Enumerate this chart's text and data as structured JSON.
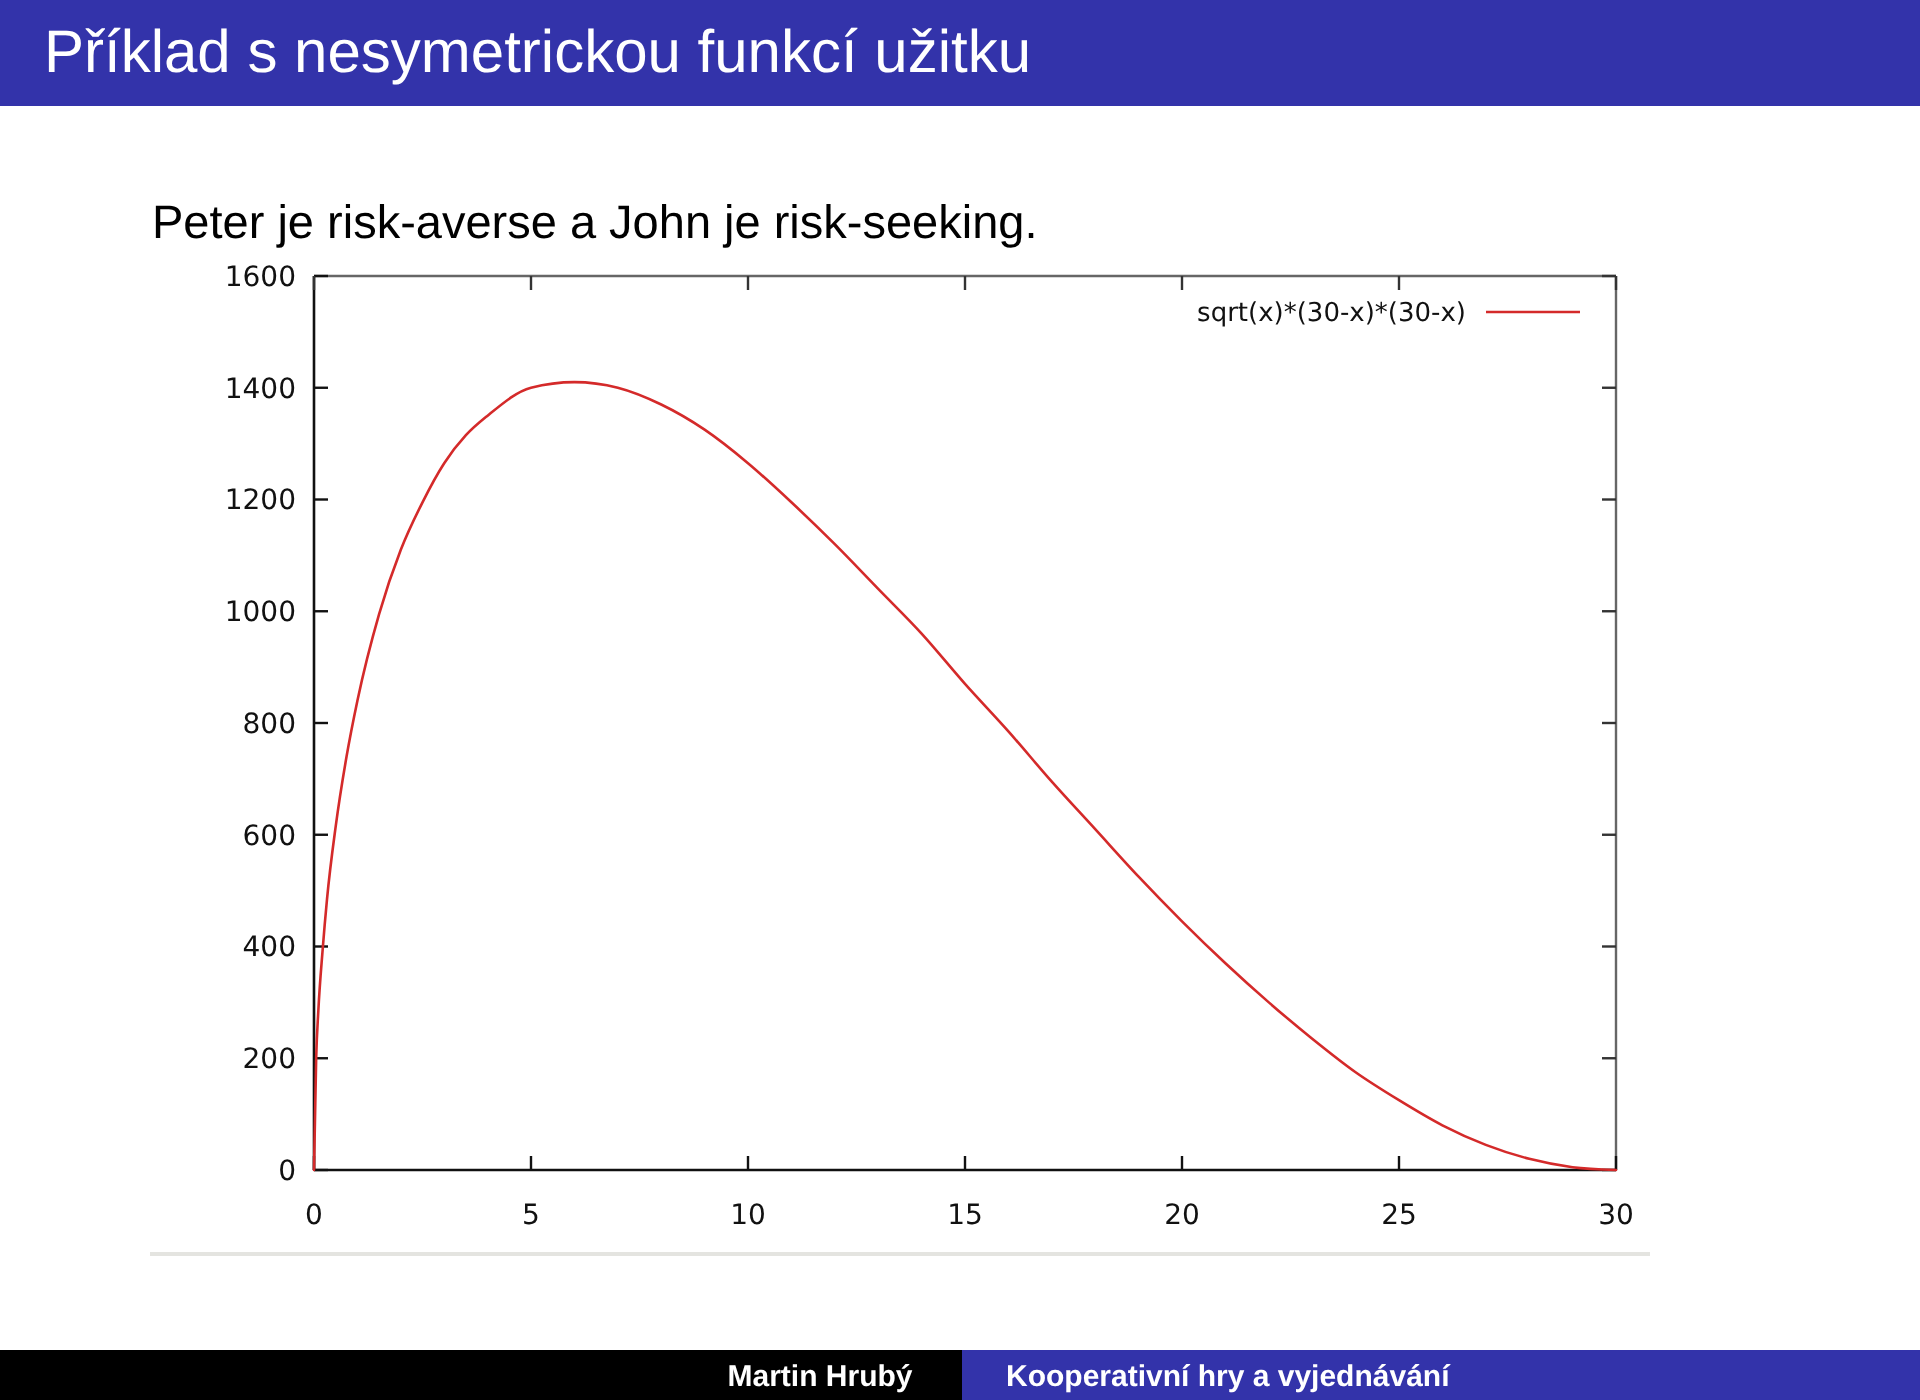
{
  "chart_data": {
    "type": "line",
    "title": "Příklad s nesymetrickou funkcí užitku",
    "subtitle": "Peter je risk-averse a John je risk-seeking.",
    "x": [
      0,
      0.05,
      0.1,
      0.2,
      0.3,
      0.5,
      0.75,
      1,
      1.5,
      2,
      2.5,
      3,
      3.5,
      4,
      5,
      6,
      7,
      8,
      9,
      10,
      11,
      12,
      13,
      14,
      15,
      16,
      17,
      18,
      19,
      20,
      21,
      22,
      23,
      24,
      25,
      26,
      27,
      28,
      29,
      30
    ],
    "series": [
      {
        "name": "sqrt(x)*(30-x)*(30-x)",
        "color": "#d42a2a",
        "values": [
          0,
          200,
          285,
          395,
          485,
          615,
          740,
          840,
          995,
          1110,
          1195,
          1265,
          1315,
          1350,
          1400,
          1410,
          1400,
          1370,
          1325,
          1265,
          1195,
          1120,
          1040,
          960,
          870,
          785,
          695,
          610,
          525,
          445,
          370,
          300,
          235,
          175,
          125,
          80,
          45,
          20,
          5,
          0
        ]
      }
    ],
    "xlim": [
      0,
      30
    ],
    "xticks": [
      0,
      5,
      10,
      15,
      20,
      25,
      30
    ],
    "ylim": [
      0,
      1600
    ],
    "yticks": [
      0,
      200,
      400,
      600,
      800,
      1000,
      1200,
      1400,
      1600
    ],
    "legend": "top right",
    "line_style": "solid",
    "annotations": [
      "Martin Hrubý",
      "Kooperativní hry a vyjednávání"
    ]
  }
}
